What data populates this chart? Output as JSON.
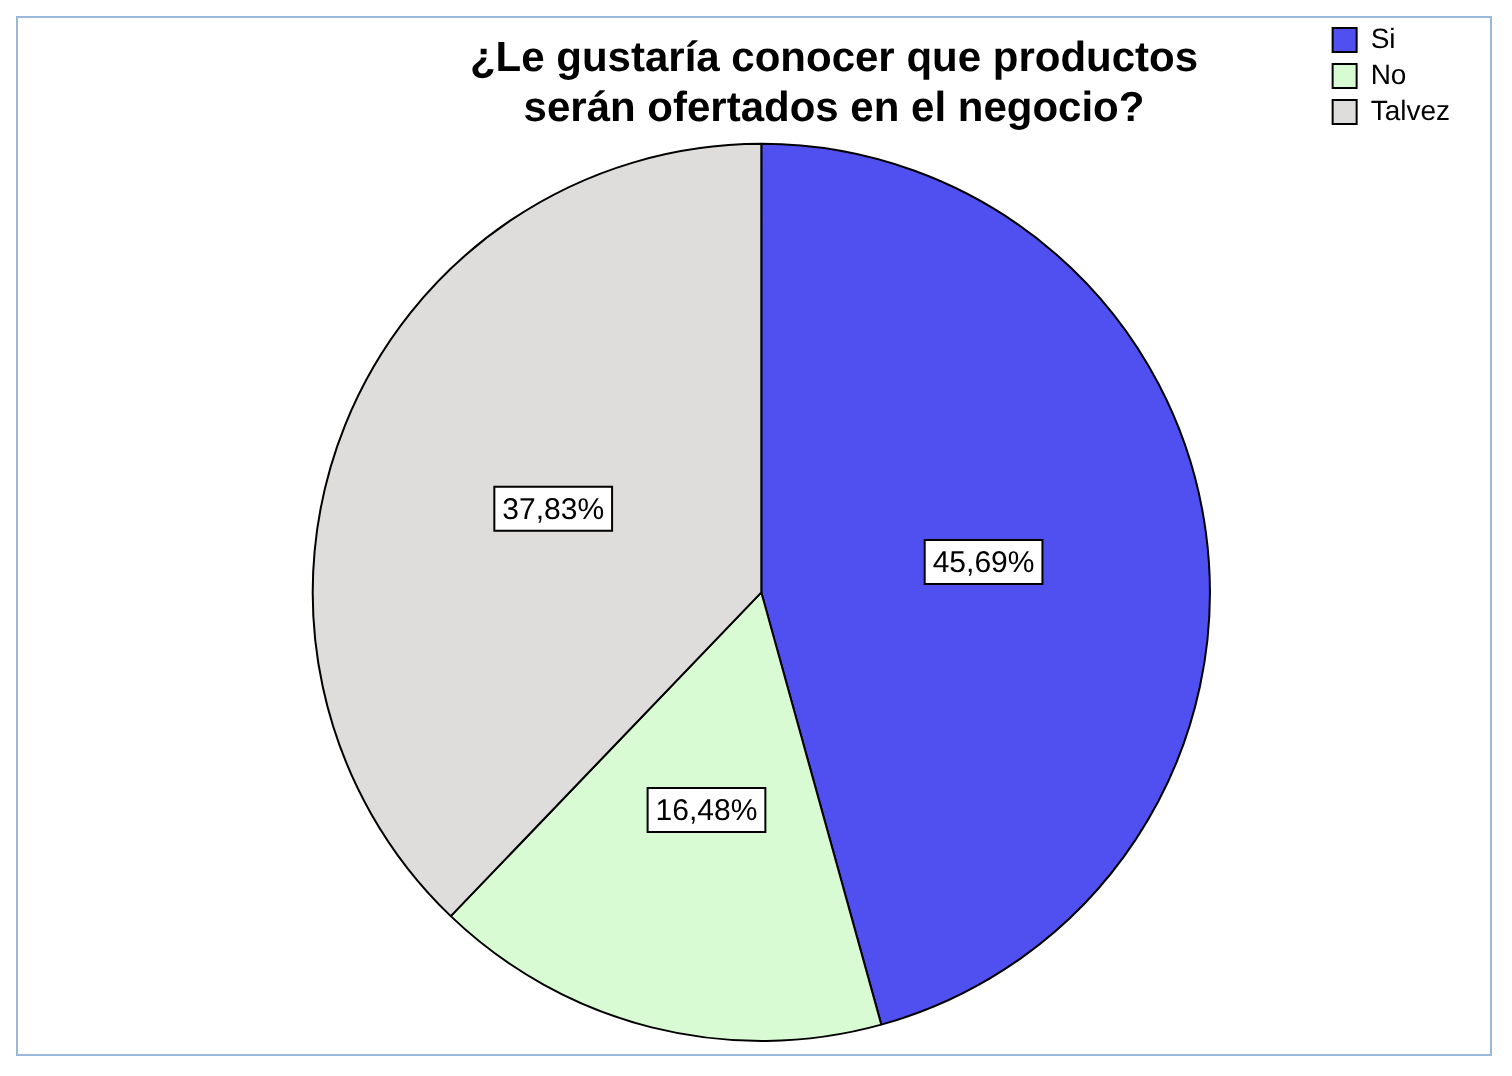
{
  "chart_data": {
    "type": "pie",
    "title": "¿Le gustaría conocer que productos serán ofertados en el negocio?",
    "categories": [
      "Si",
      "No",
      "Talvez"
    ],
    "values": [
      45.69,
      16.48,
      37.83
    ],
    "colors": [
      "#5050f0",
      "#d9fbd4",
      "#dfdddc"
    ],
    "value_labels": [
      "45,69%",
      "16,48%",
      "37,83%"
    ],
    "legend": "top right"
  }
}
